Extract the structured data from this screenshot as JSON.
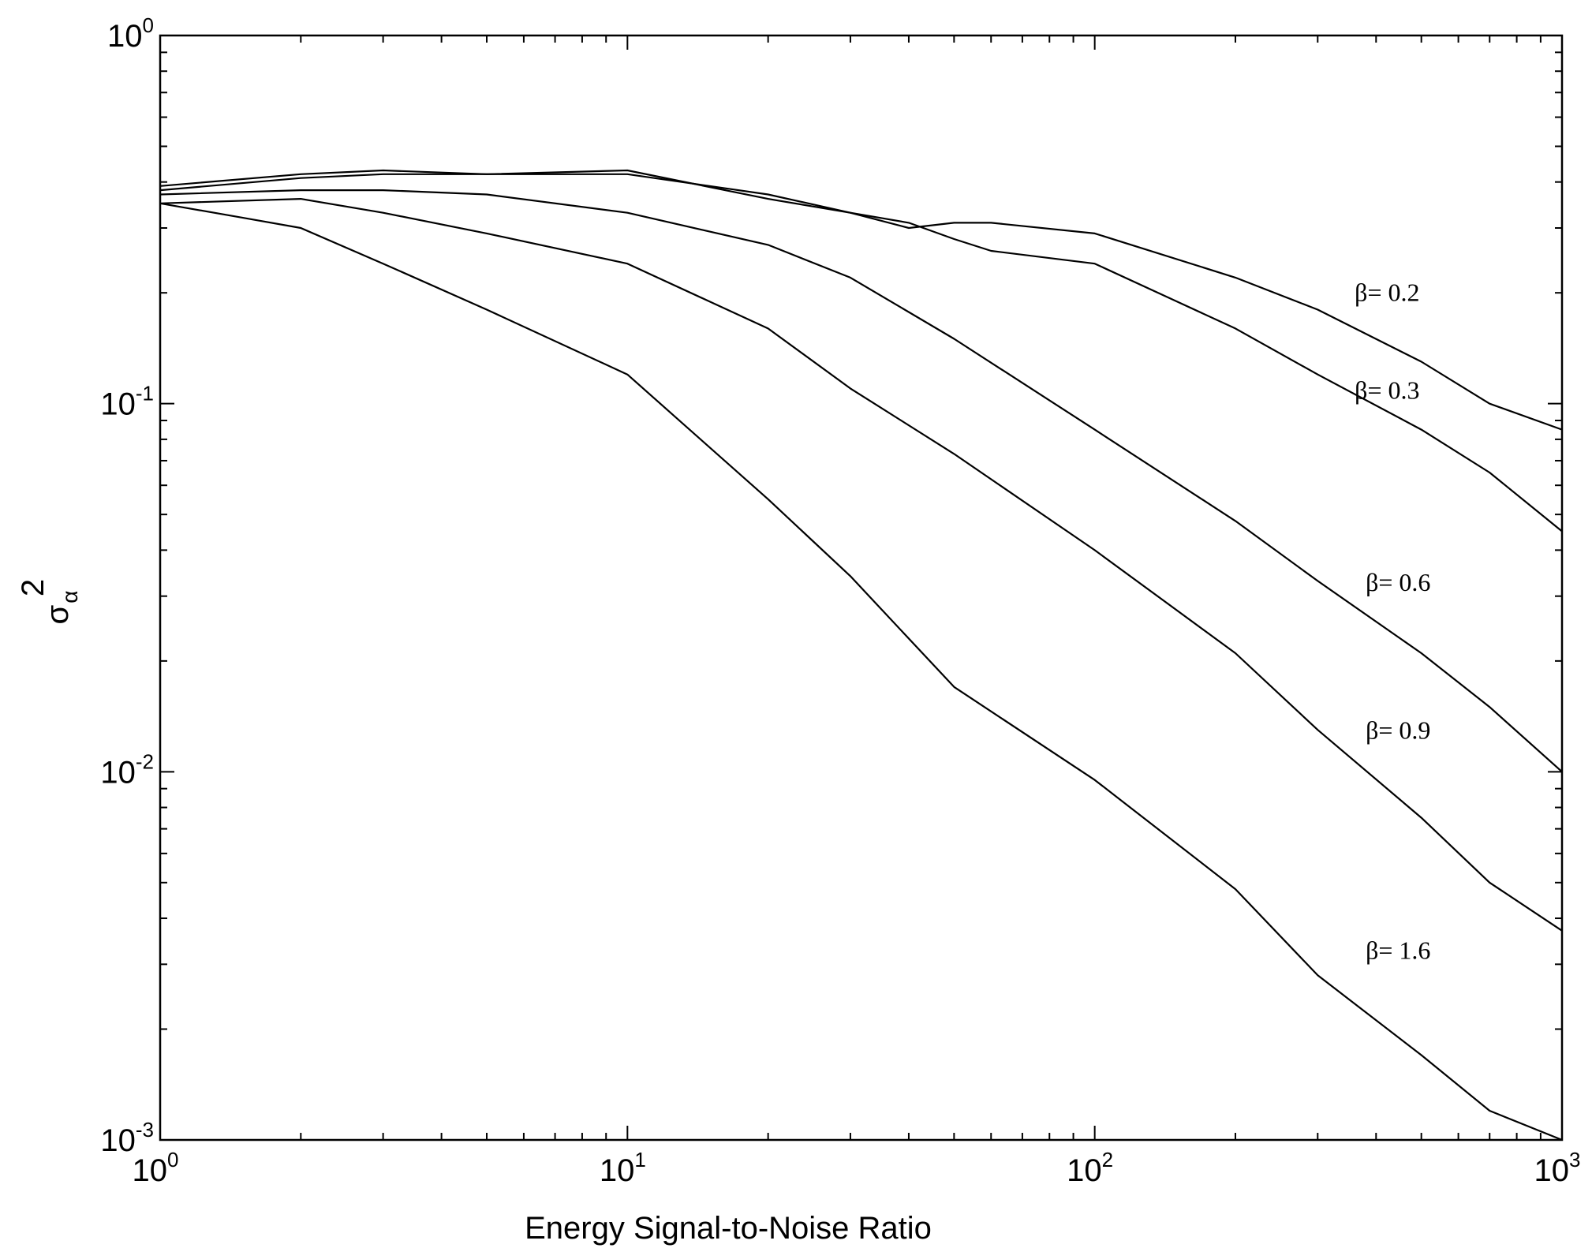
{
  "chart_data": {
    "type": "line",
    "title": "",
    "xlabel": "Energy Signal-to-Noise Ratio",
    "ylabel": {
      "base": "σ",
      "sup": "2",
      "sub": "α"
    },
    "xscale": "log",
    "yscale": "log",
    "xlim": [
      1,
      1000
    ],
    "ylim": [
      0.001,
      1
    ],
    "grid": false,
    "legend": "none",
    "x_ticks": [
      {
        "base": "10",
        "exp": "0",
        "value": 1
      },
      {
        "base": "10",
        "exp": "1",
        "value": 10
      },
      {
        "base": "10",
        "exp": "2",
        "value": 100
      },
      {
        "base": "10",
        "exp": "3",
        "value": 1000
      }
    ],
    "y_ticks": [
      {
        "base": "10",
        "exp": "0",
        "value": 1
      },
      {
        "base": "10",
        "exp": "-1",
        "value": 0.1
      },
      {
        "base": "10",
        "exp": "-2",
        "value": 0.01
      },
      {
        "base": "10",
        "exp": "-3",
        "value": 0.001
      }
    ],
    "series": [
      {
        "name": "β= 0.2",
        "label_at": [
          360,
          0.19
        ],
        "x": [
          1,
          2,
          3,
          5,
          10,
          20,
          30,
          40,
          50,
          60,
          100,
          200,
          300,
          500,
          700,
          1000
        ],
        "y": [
          0.39,
          0.42,
          0.43,
          0.42,
          0.43,
          0.36,
          0.33,
          0.3,
          0.31,
          0.31,
          0.29,
          0.22,
          0.18,
          0.13,
          0.1,
          0.085
        ]
      },
      {
        "name": "β= 0.3",
        "label_at": [
          360,
          0.103
        ],
        "x": [
          1,
          2,
          3,
          5,
          10,
          20,
          30,
          40,
          50,
          60,
          100,
          200,
          300,
          500,
          700,
          1000
        ],
        "y": [
          0.38,
          0.41,
          0.42,
          0.42,
          0.42,
          0.37,
          0.33,
          0.31,
          0.28,
          0.26,
          0.24,
          0.16,
          0.12,
          0.085,
          0.065,
          0.045
        ]
      },
      {
        "name": "β= 0.6",
        "label_at": [
          380,
          0.031
        ],
        "x": [
          1,
          2,
          3,
          5,
          10,
          20,
          30,
          50,
          100,
          200,
          300,
          500,
          700,
          1000
        ],
        "y": [
          0.37,
          0.38,
          0.38,
          0.37,
          0.33,
          0.27,
          0.22,
          0.15,
          0.085,
          0.048,
          0.033,
          0.021,
          0.015,
          0.01
        ]
      },
      {
        "name": "β= 0.9",
        "label_at": [
          380,
          0.0123
        ],
        "x": [
          1,
          2,
          3,
          5,
          10,
          20,
          30,
          50,
          100,
          200,
          300,
          500,
          700,
          1000
        ],
        "y": [
          0.35,
          0.36,
          0.33,
          0.29,
          0.24,
          0.16,
          0.11,
          0.073,
          0.04,
          0.021,
          0.013,
          0.0075,
          0.005,
          0.0037
        ]
      },
      {
        "name": "β= 1.6",
        "label_at": [
          380,
          0.0031
        ],
        "x": [
          1,
          1.5,
          2,
          3,
          5,
          10,
          20,
          30,
          50,
          100,
          200,
          300,
          500,
          700,
          1000
        ],
        "y": [
          0.35,
          0.32,
          0.3,
          0.24,
          0.18,
          0.12,
          0.055,
          0.034,
          0.017,
          0.0095,
          0.0048,
          0.0028,
          0.0017,
          0.0012,
          0.001
        ]
      }
    ]
  }
}
